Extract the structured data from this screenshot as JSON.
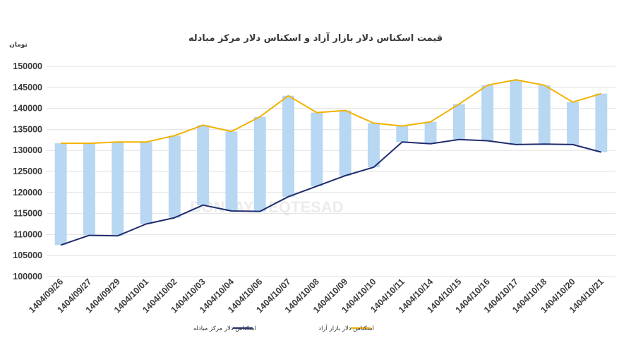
{
  "chart_data": {
    "type": "line",
    "title": "قیمت اسکناس دلار بازار آزاد و اسکناس دلار مرکز مبادله",
    "ylabel": "تومان",
    "xlabel": "",
    "ylim": [
      100000,
      150000
    ],
    "yticks": [
      100000,
      105000,
      110000,
      115000,
      120000,
      125000,
      130000,
      135000,
      140000,
      145000,
      150000
    ],
    "grid": true,
    "legend_position": "bottom",
    "categories": [
      "1404/09/26",
      "1404/09/27",
      "1404/09/29",
      "1404/10/01",
      "1404/10/02",
      "1404/10/03",
      "1404/10/04",
      "1404/10/06",
      "1404/10/07",
      "1404/10/08",
      "1404/10/09",
      "1404/10/10",
      "1404/10/11",
      "1404/10/14",
      "1404/10/15",
      "1404/10/16",
      "1404/10/17",
      "1404/10/18",
      "1404/10/20",
      "1404/10/21"
    ],
    "series": [
      {
        "name": "اسکناس دلار بازار آزاد",
        "color": "#f2b200",
        "values": [
          131700,
          131700,
          132000,
          132000,
          133500,
          136000,
          134500,
          138000,
          143000,
          139000,
          139500,
          136500,
          135800,
          136800,
          141000,
          145500,
          146800,
          145500,
          141500,
          143500
        ]
      },
      {
        "name": "اسکناس دلار مرکز مبادله",
        "color": "#1f2d6e",
        "values": [
          107500,
          109800,
          109700,
          112500,
          114000,
          117000,
          115600,
          115500,
          119000,
          121500,
          124000,
          126000,
          132000,
          131600,
          132600,
          132300,
          131400,
          131500,
          131400,
          129600
        ]
      }
    ],
    "band_color": "#b7d7f2",
    "watermark": "DONYAYE EQTESAD"
  }
}
